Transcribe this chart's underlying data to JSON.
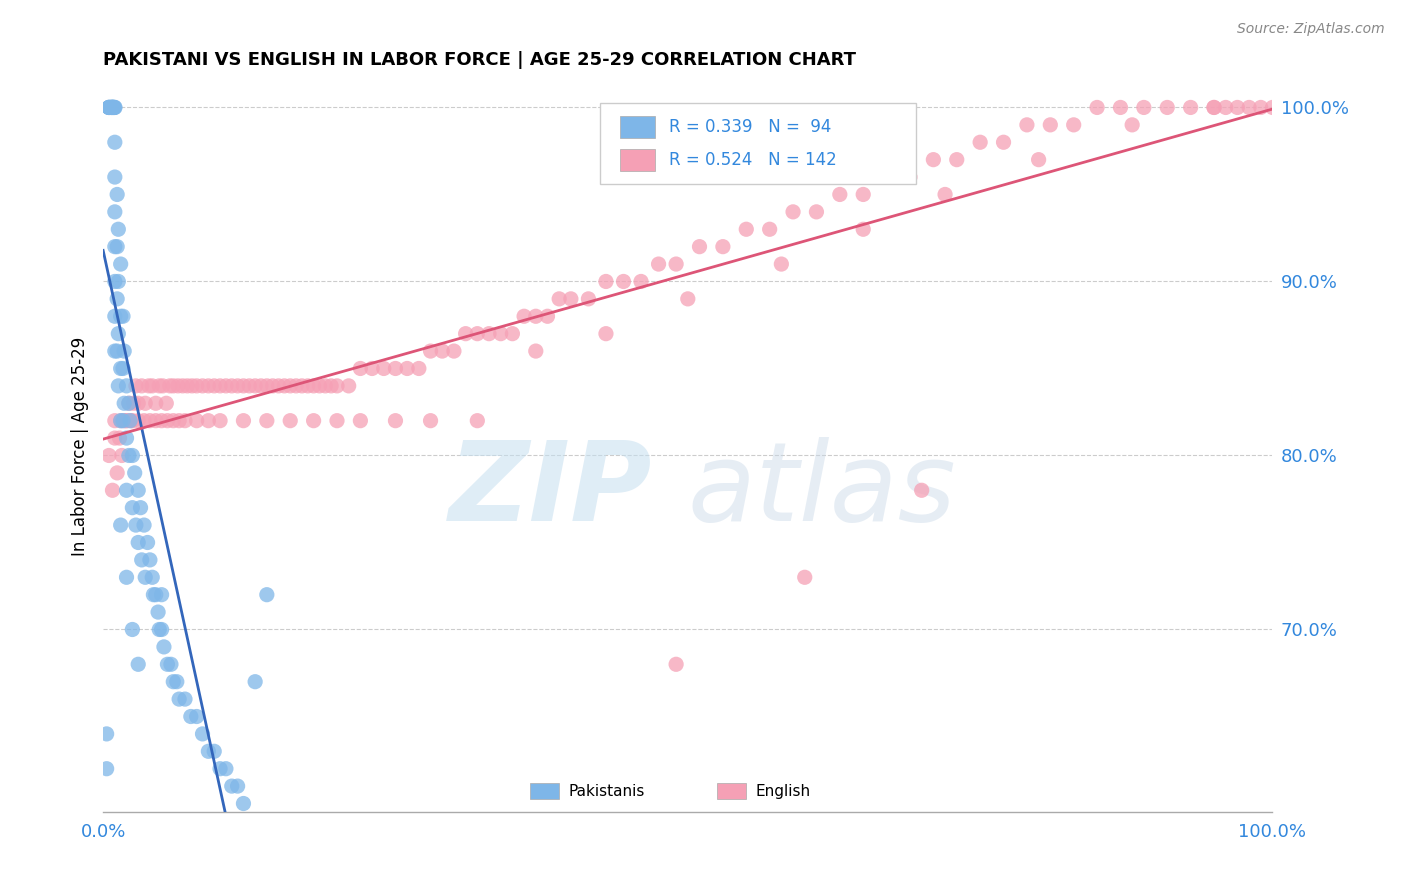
{
  "title": "PAKISTANI VS ENGLISH IN LABOR FORCE | AGE 25-29 CORRELATION CHART",
  "source": "Source: ZipAtlas.com",
  "ylabel": "In Labor Force | Age 25-29",
  "blue_color": "#7EB6E8",
  "pink_color": "#F5A0B5",
  "trend_blue": "#3366BB",
  "trend_pink": "#DD5577",
  "xlim": [
    0.0,
    1.0
  ],
  "ylim": [
    0.595,
    1.015
  ],
  "yticks": [
    0.7,
    0.8,
    0.9,
    1.0
  ],
  "ytick_labels": [
    "70.0%",
    "80.0%",
    "90.0%",
    "100.0%"
  ],
  "pakistanis_x": [
    0.005,
    0.005,
    0.005,
    0.005,
    0.005,
    0.007,
    0.007,
    0.007,
    0.007,
    0.007,
    0.008,
    0.008,
    0.008,
    0.008,
    0.009,
    0.009,
    0.009,
    0.009,
    0.01,
    0.01,
    0.01,
    0.01,
    0.01,
    0.01,
    0.01,
    0.01,
    0.01,
    0.012,
    0.012,
    0.012,
    0.012,
    0.013,
    0.013,
    0.013,
    0.013,
    0.015,
    0.015,
    0.015,
    0.015,
    0.017,
    0.017,
    0.017,
    0.018,
    0.018,
    0.02,
    0.02,
    0.02,
    0.022,
    0.022,
    0.023,
    0.025,
    0.025,
    0.027,
    0.028,
    0.03,
    0.03,
    0.032,
    0.033,
    0.035,
    0.036,
    0.038,
    0.04,
    0.042,
    0.043,
    0.045,
    0.047,
    0.048,
    0.05,
    0.052,
    0.055,
    0.058,
    0.06,
    0.063,
    0.065,
    0.07,
    0.075,
    0.08,
    0.085,
    0.09,
    0.095,
    0.1,
    0.105,
    0.11,
    0.115,
    0.12,
    0.13,
    0.14,
    0.015,
    0.02,
    0.025,
    0.03,
    0.05,
    0.003,
    0.003
  ],
  "pakistanis_y": [
    1.0,
    1.0,
    1.0,
    1.0,
    1.0,
    1.0,
    1.0,
    1.0,
    1.0,
    1.0,
    1.0,
    1.0,
    1.0,
    1.0,
    1.0,
    1.0,
    1.0,
    1.0,
    1.0,
    1.0,
    0.98,
    0.96,
    0.94,
    0.92,
    0.9,
    0.88,
    0.86,
    0.95,
    0.92,
    0.89,
    0.86,
    0.93,
    0.9,
    0.87,
    0.84,
    0.91,
    0.88,
    0.85,
    0.82,
    0.88,
    0.85,
    0.82,
    0.86,
    0.83,
    0.84,
    0.81,
    0.78,
    0.83,
    0.8,
    0.82,
    0.8,
    0.77,
    0.79,
    0.76,
    0.78,
    0.75,
    0.77,
    0.74,
    0.76,
    0.73,
    0.75,
    0.74,
    0.73,
    0.72,
    0.72,
    0.71,
    0.7,
    0.7,
    0.69,
    0.68,
    0.68,
    0.67,
    0.67,
    0.66,
    0.66,
    0.65,
    0.65,
    0.64,
    0.63,
    0.63,
    0.62,
    0.62,
    0.61,
    0.61,
    0.6,
    0.67,
    0.72,
    0.76,
    0.73,
    0.7,
    0.68,
    0.72,
    0.64,
    0.62
  ],
  "english_x": [
    0.005,
    0.008,
    0.01,
    0.012,
    0.014,
    0.016,
    0.018,
    0.02,
    0.022,
    0.024,
    0.026,
    0.028,
    0.03,
    0.033,
    0.036,
    0.039,
    0.042,
    0.045,
    0.048,
    0.051,
    0.054,
    0.057,
    0.06,
    0.064,
    0.068,
    0.072,
    0.076,
    0.08,
    0.085,
    0.09,
    0.095,
    0.1,
    0.105,
    0.11,
    0.115,
    0.12,
    0.125,
    0.13,
    0.135,
    0.14,
    0.145,
    0.15,
    0.155,
    0.16,
    0.165,
    0.17,
    0.175,
    0.18,
    0.185,
    0.19,
    0.195,
    0.2,
    0.21,
    0.22,
    0.23,
    0.24,
    0.25,
    0.26,
    0.27,
    0.28,
    0.29,
    0.3,
    0.31,
    0.32,
    0.33,
    0.34,
    0.35,
    0.36,
    0.37,
    0.38,
    0.39,
    0.4,
    0.415,
    0.43,
    0.445,
    0.46,
    0.475,
    0.49,
    0.51,
    0.53,
    0.55,
    0.57,
    0.59,
    0.61,
    0.63,
    0.65,
    0.67,
    0.69,
    0.71,
    0.73,
    0.75,
    0.77,
    0.79,
    0.81,
    0.83,
    0.85,
    0.87,
    0.89,
    0.91,
    0.93,
    0.95,
    0.96,
    0.97,
    0.98,
    0.99,
    1.0,
    0.01,
    0.015,
    0.02,
    0.025,
    0.03,
    0.035,
    0.04,
    0.045,
    0.05,
    0.055,
    0.06,
    0.065,
    0.07,
    0.08,
    0.09,
    0.1,
    0.12,
    0.14,
    0.16,
    0.18,
    0.2,
    0.22,
    0.25,
    0.28,
    0.32,
    0.37,
    0.43,
    0.5,
    0.58,
    0.65,
    0.72,
    0.8,
    0.88,
    0.95,
    0.49,
    0.6,
    0.7
  ],
  "english_y": [
    0.8,
    0.78,
    0.81,
    0.79,
    0.81,
    0.8,
    0.82,
    0.82,
    0.83,
    0.82,
    0.83,
    0.84,
    0.83,
    0.84,
    0.83,
    0.84,
    0.84,
    0.83,
    0.84,
    0.84,
    0.83,
    0.84,
    0.84,
    0.84,
    0.84,
    0.84,
    0.84,
    0.84,
    0.84,
    0.84,
    0.84,
    0.84,
    0.84,
    0.84,
    0.84,
    0.84,
    0.84,
    0.84,
    0.84,
    0.84,
    0.84,
    0.84,
    0.84,
    0.84,
    0.84,
    0.84,
    0.84,
    0.84,
    0.84,
    0.84,
    0.84,
    0.84,
    0.84,
    0.85,
    0.85,
    0.85,
    0.85,
    0.85,
    0.85,
    0.86,
    0.86,
    0.86,
    0.87,
    0.87,
    0.87,
    0.87,
    0.87,
    0.88,
    0.88,
    0.88,
    0.89,
    0.89,
    0.89,
    0.9,
    0.9,
    0.9,
    0.91,
    0.91,
    0.92,
    0.92,
    0.93,
    0.93,
    0.94,
    0.94,
    0.95,
    0.95,
    0.96,
    0.96,
    0.97,
    0.97,
    0.98,
    0.98,
    0.99,
    0.99,
    0.99,
    1.0,
    1.0,
    1.0,
    1.0,
    1.0,
    1.0,
    1.0,
    1.0,
    1.0,
    1.0,
    1.0,
    0.82,
    0.82,
    0.82,
    0.82,
    0.82,
    0.82,
    0.82,
    0.82,
    0.82,
    0.82,
    0.82,
    0.82,
    0.82,
    0.82,
    0.82,
    0.82,
    0.82,
    0.82,
    0.82,
    0.82,
    0.82,
    0.82,
    0.82,
    0.82,
    0.82,
    0.86,
    0.87,
    0.89,
    0.91,
    0.93,
    0.95,
    0.97,
    0.99,
    1.0,
    0.68,
    0.73,
    0.78
  ]
}
